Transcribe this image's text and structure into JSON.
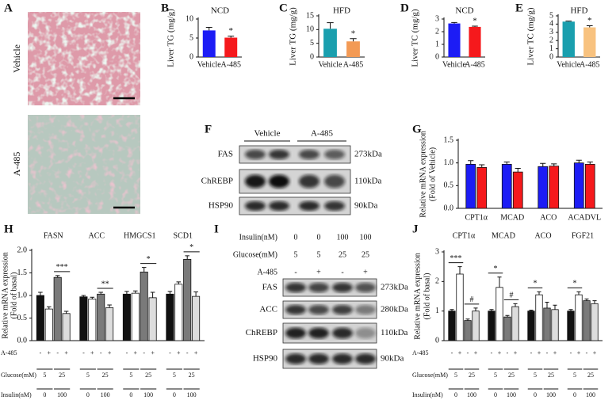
{
  "chart_data": [
    {
      "type": "bar",
      "letter": "B",
      "title": "NCD",
      "ylabel": "Liver TG (mg/g)",
      "categories": [
        "Vehicle",
        "A-485"
      ],
      "values": [
        7.0,
        5.1
      ],
      "errors": [
        0.8,
        0.4
      ],
      "colors": [
        "#1c1cf5",
        "#f5191c"
      ],
      "ylim": [
        0,
        10
      ],
      "yticks": [
        0,
        5,
        10
      ],
      "significance": "*"
    },
    {
      "type": "bar",
      "letter": "C",
      "title": "HFD",
      "ylabel": "Liver TG (mg/g)",
      "categories": [
        "Vehicle",
        "A-485"
      ],
      "values": [
        10.3,
        5.7
      ],
      "errors": [
        2.2,
        1.0
      ],
      "colors": [
        "#1a9fae",
        "#f39a55"
      ],
      "ylim": [
        0,
        15
      ],
      "yticks": [
        0,
        5,
        10,
        15
      ],
      "significance": "*"
    },
    {
      "type": "bar",
      "letter": "D",
      "title": "NCD",
      "ylabel": "Liver TC (mg/g)",
      "categories": [
        "Vehicle",
        "A-485"
      ],
      "values": [
        2.65,
        2.38
      ],
      "errors": [
        0.08,
        0.06
      ],
      "colors": [
        "#1c1cf5",
        "#f5191c"
      ],
      "ylim": [
        0,
        3
      ],
      "yticks": [
        0,
        1,
        2,
        3
      ],
      "significance": "*"
    },
    {
      "type": "bar",
      "letter": "E",
      "title": "HFD",
      "ylabel": "Liver TC (mg/g)",
      "categories": [
        "Vehicle",
        "A-485"
      ],
      "values": [
        4.3,
        3.6
      ],
      "errors": [
        0.06,
        0.2
      ],
      "colors": [
        "#1a9fae",
        "#f8c27f"
      ],
      "ylim": [
        0,
        5
      ],
      "yticks": [
        0,
        1,
        2,
        3,
        4,
        5
      ],
      "significance": "*"
    },
    {
      "type": "bar",
      "letter": "G",
      "ylabel": [
        "Relative mRNA expression",
        "(Fold of Vehicle)"
      ],
      "categories": [
        "CPT1α",
        "MCAD",
        "ACO",
        "ACADVL"
      ],
      "series": [
        {
          "color": "#1c1cf5",
          "values": [
            0.97,
            0.97,
            0.92,
            1.0
          ],
          "errors": [
            0.08,
            0.05,
            0.07,
            0.06
          ]
        },
        {
          "color": "#f5191c",
          "values": [
            0.9,
            0.8,
            0.93,
            0.97
          ],
          "errors": [
            0.06,
            0.08,
            0.05,
            0.05
          ]
        }
      ],
      "ylim": [
        0,
        1.5
      ],
      "yticks": [
        {
          "value": 0,
          "label": "0.0"
        },
        0.5,
        {
          "value": 1,
          "label": "1.0"
        },
        1.5
      ]
    },
    {
      "type": "bar",
      "letter": "H",
      "ylabel": [
        "Relative mRNA expression",
        "(Fold of basal)"
      ],
      "categories": [
        "FASN",
        "ACC",
        "HMGCS1",
        "SCD1"
      ],
      "series": [
        {
          "color": "#111111",
          "values": [
            1.0,
            0.97,
            1.03,
            1.03
          ],
          "errors": [
            0.07,
            0.03,
            0.06,
            0.06
          ]
        },
        {
          "color": "#ffffff",
          "values": [
            0.7,
            0.92,
            1.05,
            1.25
          ],
          "errors": [
            0.05,
            0.04,
            0.05,
            0.05
          ]
        },
        {
          "color": "#7a7a7a",
          "values": [
            1.4,
            1.03,
            1.52,
            1.8
          ],
          "errors": [
            0.04,
            0.04,
            0.1,
            0.08
          ]
        },
        {
          "color": "#dddddd",
          "values": [
            0.6,
            0.73,
            0.95,
            0.98
          ],
          "errors": [
            0.05,
            0.06,
            0.12,
            0.1
          ]
        }
      ],
      "ylim": [
        0,
        2
      ],
      "yticks": [
        {
          "value": 0,
          "label": "0.0"
        },
        0.5,
        {
          "value": 1,
          "label": "1.0"
        },
        1.5,
        {
          "value": 2,
          "label": "2.0"
        }
      ],
      "significance": [
        [
          null,
          "***"
        ],
        [
          null,
          "**"
        ],
        [
          null,
          "*"
        ],
        [
          null,
          "*"
        ]
      ],
      "conditions": [
        {
          "label": "A-485",
          "values": [
            "-",
            "+",
            "-",
            "+"
          ]
        },
        {
          "label": "Glucose(mM)",
          "values": [
            "5",
            "25"
          ]
        },
        {
          "label": "Insulin(nM)",
          "values": [
            "0",
            "100"
          ]
        }
      ]
    },
    {
      "type": "bar",
      "letter": "J",
      "ylabel": [
        "Relative mRNA expression",
        "(Fold of basal)"
      ],
      "categories": [
        "CPT1α",
        "MCAD",
        "ACO",
        "FGF21"
      ],
      "series": [
        {
          "color": "#111111",
          "values": [
            1.0,
            1.0,
            1.0,
            1.0
          ],
          "errors": [
            0.05,
            0.05,
            0.03,
            0.05
          ]
        },
        {
          "color": "#ffffff",
          "values": [
            2.25,
            1.8,
            1.55,
            1.55
          ],
          "errors": [
            0.25,
            0.35,
            0.1,
            0.1
          ]
        },
        {
          "color": "#7a7a7a",
          "values": [
            0.68,
            0.8,
            1.1,
            1.35
          ],
          "errors": [
            0.05,
            0.05,
            0.2,
            0.06
          ]
        },
        {
          "color": "#dddddd",
          "values": [
            1.0,
            1.15,
            1.05,
            1.25
          ],
          "errors": [
            0.1,
            0.1,
            0.15,
            0.1
          ]
        }
      ],
      "ylim": [
        0,
        3
      ],
      "yticks": [
        0,
        1,
        2,
        3
      ],
      "significance": [
        [
          "***",
          "#"
        ],
        [
          "*",
          "#"
        ],
        [
          "*",
          null
        ],
        [
          "*",
          null
        ]
      ],
      "conditions": [
        {
          "label": "A-485",
          "values": [
            "-",
            "+",
            "-",
            "+"
          ]
        },
        {
          "label": "Glucose(mM)",
          "values": [
            "5",
            "25"
          ]
        },
        {
          "label": "Insulin(nM)",
          "values": [
            "0",
            "100"
          ]
        }
      ]
    }
  ],
  "panel_a": {
    "letter": "A",
    "labels": [
      "Vehicle",
      "A-485"
    ]
  },
  "panel_f": {
    "letter": "F",
    "groups": [
      "Vehicle",
      "A-485"
    ],
    "bands": [
      {
        "protein": "FAS",
        "size": "273kDa"
      },
      {
        "protein": "ChREBP",
        "size": "110kDa"
      },
      {
        "protein": "HSP90",
        "size": "90kDa"
      }
    ]
  },
  "panel_i": {
    "letter": "I",
    "conditions": [
      {
        "label": "Insulin(nM)",
        "values": [
          "0",
          "0",
          "100",
          "100"
        ]
      },
      {
        "label": "Glucose(mM)",
        "values": [
          "5",
          "5",
          "25",
          "25"
        ]
      },
      {
        "label": "A-485",
        "values": [
          "-",
          "+",
          "-",
          "+"
        ]
      }
    ],
    "bands": [
      {
        "protein": "FAS",
        "size": "273kDa"
      },
      {
        "protein": "ACC",
        "size": "280kDa"
      },
      {
        "protein": "ChREBP",
        "size": "110kDa"
      },
      {
        "protein": "HSP90",
        "size": "90kDa"
      }
    ]
  }
}
